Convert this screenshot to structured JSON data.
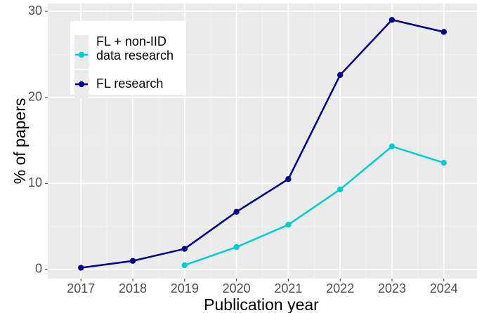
{
  "chart_data": {
    "type": "line",
    "x": [
      2017,
      2018,
      2019,
      2020,
      2021,
      2022,
      2023,
      2024
    ],
    "series": [
      {
        "name": "FL + non-IID\ndata research",
        "color": "#00ced1",
        "values": [
          null,
          null,
          0.5,
          2.6,
          5.2,
          9.3,
          14.3,
          12.4
        ]
      },
      {
        "name": "FL research",
        "color": "#00008b",
        "values": [
          0.2,
          1.0,
          2.4,
          6.7,
          10.5,
          22.6,
          29.0,
          27.6
        ]
      }
    ],
    "x_label": "Publication year",
    "y_label": "% of papers",
    "xlim": [
      2016.36,
      2024.64
    ],
    "xticks": [
      2017,
      2018,
      2019,
      2020,
      2021,
      2022,
      2023,
      2024
    ],
    "ylim": [
      -1.06,
      30.9
    ],
    "yticks": [
      0,
      10,
      20,
      30
    ],
    "grid": true,
    "legend": "top-left"
  }
}
